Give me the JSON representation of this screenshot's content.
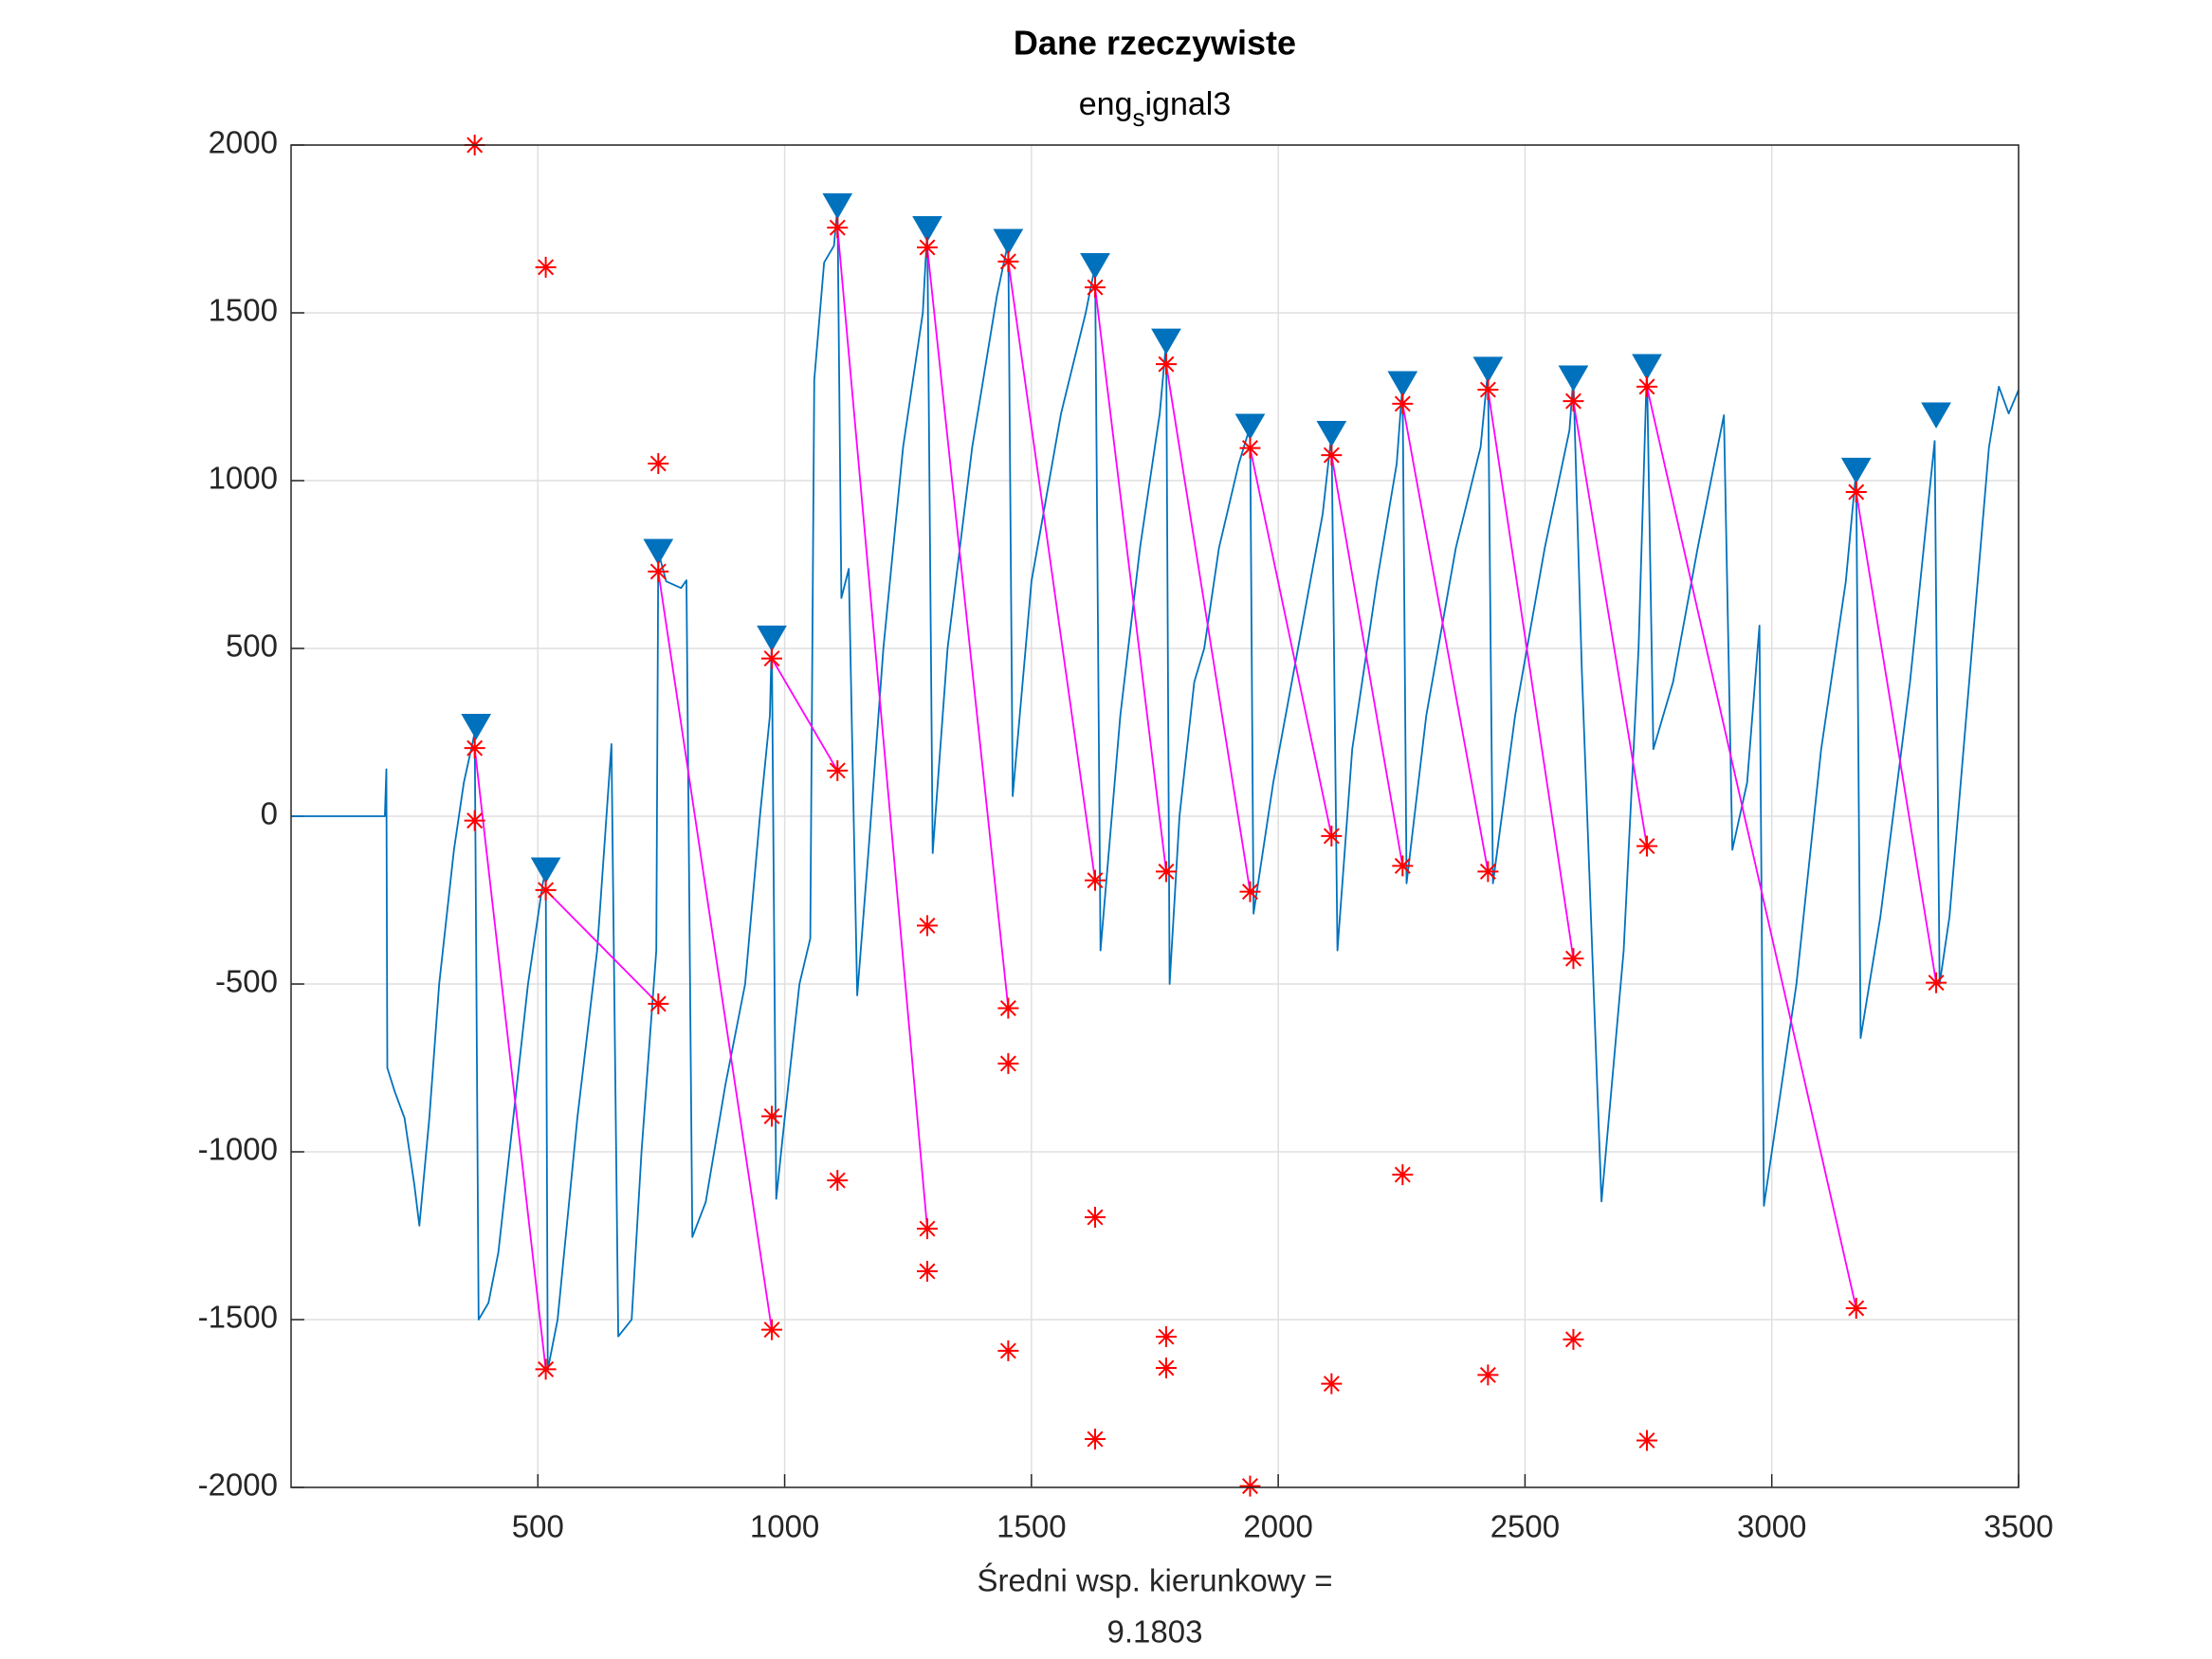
{
  "chart_data": {
    "type": "line",
    "title": "Dane rzeczywiste",
    "subtitle": [
      "eng",
      "s",
      "ignal3"
    ],
    "xlabel": [
      "Średni wsp. kierunkowy =",
      "9.1803"
    ],
    "xlim": [
      0,
      3500
    ],
    "xticks": [
      500,
      1000,
      1500,
      2000,
      2500,
      3000,
      3500
    ],
    "ylim": [
      -2000,
      2000
    ],
    "yticks": [
      -2000,
      -1500,
      -1000,
      -500,
      0,
      500,
      1000,
      1500,
      2000
    ],
    "grid": true,
    "series": [
      {
        "color": "#0072bd",
        "marker": "none",
        "x": [
          0,
          190,
          193,
          195,
          210,
          230,
          240,
          250,
          260,
          280,
          300,
          330,
          350,
          365,
          372,
          380,
          400,
          420,
          450,
          480,
          510,
          516,
          520,
          540,
          560,
          580,
          620,
          649,
          663,
          690,
          710,
          740,
          744,
          760,
          790,
          801,
          813,
          840,
          880,
          920,
          950,
          970,
          974,
          983,
          1000,
          1030,
          1052,
          1060,
          1080,
          1100,
          1107,
          1115,
          1130,
          1147,
          1170,
          1200,
          1240,
          1280,
          1289,
          1300,
          1330,
          1380,
          1430,
          1453,
          1462,
          1500,
          1560,
          1610,
          1629,
          1640,
          1680,
          1720,
          1760,
          1773,
          1780,
          1800,
          1830,
          1850,
          1880,
          1920,
          1943,
          1950,
          1990,
          2040,
          2090,
          2108,
          2120,
          2150,
          2200,
          2240,
          2252,
          2260,
          2300,
          2360,
          2410,
          2425,
          2435,
          2480,
          2540,
          2590,
          2598,
          2615,
          2655,
          2700,
          2730,
          2747,
          2760,
          2800,
          2850,
          2903,
          2920,
          2950,
          2975,
          2984,
          3050,
          3100,
          3150,
          3171,
          3180,
          3220,
          3280,
          3330,
          3340,
          3360,
          3400,
          3440,
          3460,
          3480,
          3500
        ],
        "values": [
          0,
          0,
          140,
          -750,
          -820,
          -900,
          -1000,
          -1100,
          -1220,
          -900,
          -500,
          -100,
          100,
          200,
          250,
          -1500,
          -1450,
          -1300,
          -900,
          -500,
          -200,
          -161,
          -1650,
          -1500,
          -1200,
          -900,
          -400,
          215,
          -1550,
          -1500,
          -1000,
          -400,
          788,
          700,
          680,
          703,
          -1254,
          -1150,
          -800,
          -500,
          0,
          300,
          530,
          -1140,
          -900,
          -500,
          -364,
          1300,
          1650,
          1700,
          1818,
          650,
          737,
          -534,
          -100,
          500,
          1100,
          1500,
          1750,
          -110,
          500,
          1100,
          1550,
          1712,
          60,
          700,
          1200,
          1500,
          1640,
          -400,
          300,
          800,
          1200,
          1415,
          -500,
          0,
          400,
          500,
          800,
          1050,
          1161,
          -290,
          100,
          500,
          900,
          1140,
          -400,
          200,
          700,
          1050,
          1288,
          -200,
          300,
          800,
          1100,
          1331,
          -200,
          300,
          800,
          1150,
          1305,
          440,
          -1148,
          -400,
          500,
          1339,
          200,
          400,
          800,
          1195,
          -100,
          100,
          568,
          -1161,
          -500,
          200,
          700,
          1030,
          -661,
          -300,
          400,
          1118,
          -500,
          -300,
          400,
          1100,
          1280,
          1200,
          1270
        ]
      },
      {
        "color": "#ff00ff",
        "marker": "none",
        "x": [
          372,
          516,
          null,
          516,
          744,
          null,
          744,
          974,
          null,
          974,
          1107,
          null,
          1107,
          1289,
          null,
          1289,
          1453,
          null,
          1453,
          1629,
          null,
          1629,
          1773,
          null,
          1773,
          1943,
          null,
          1943,
          2108,
          null,
          2108,
          2252,
          null,
          2252,
          2425,
          null,
          2425,
          2598,
          null,
          2598,
          2747,
          null,
          2747,
          3171,
          null,
          3171,
          3333
        ],
        "values": [
          203,
          -1648,
          null,
          -220,
          -559,
          null,
          729,
          -1530,
          null,
          470,
          136,
          null,
          1754,
          -1229,
          null,
          1695,
          -572,
          null,
          1653,
          -191,
          null,
          1576,
          -165,
          null,
          1347,
          -225,
          null,
          1097,
          -59,
          null,
          1076,
          -148,
          null,
          1229,
          -165,
          null,
          1271,
          -424,
          null,
          1237,
          -89,
          null,
          1280,
          -1466,
          null,
          966,
          -496
        ]
      },
      {
        "color": "#0072bd",
        "marker": "triangle-down",
        "x": [
          375,
          516,
          744,
          974,
          1107,
          1289,
          1453,
          1629,
          1773,
          1943,
          2108,
          2252,
          2425,
          2598,
          2747,
          3171,
          3333
        ],
        "values": [
          267,
          -161,
          788,
          530,
          1818,
          1750,
          1712,
          1640,
          1415,
          1161,
          1140,
          1288,
          1331,
          1305,
          1339,
          1030,
          1195
        ]
      },
      {
        "color": "#ff0000",
        "marker": "asterisk",
        "x": [
          372,
          516,
          372,
          372,
          516,
          516,
          744,
          744,
          744,
          974,
          974,
          974,
          1107,
          1107,
          1107,
          1289,
          1289,
          1289,
          1289,
          1453,
          1453,
          1453,
          1453,
          1629,
          1629,
          1629,
          1629,
          1773,
          1773,
          1773,
          1773,
          1943,
          1943,
          1943,
          2108,
          2108,
          2108,
          2252,
          2252,
          2252,
          2425,
          2425,
          2425,
          2598,
          2598,
          2598,
          2747,
          2747,
          2747,
          3171,
          3171,
          3333
        ],
        "values": [
          2000,
          1636,
          203,
          -13,
          -220,
          -1648,
          1051,
          729,
          -559,
          470,
          -894,
          -1530,
          1754,
          136,
          -1085,
          1695,
          -326,
          -1229,
          -1356,
          1653,
          -572,
          -737,
          -1593,
          1576,
          -191,
          -1195,
          -1856,
          1347,
          -165,
          -1551,
          -1644,
          1097,
          -225,
          -1996,
          1076,
          -59,
          -1691,
          1229,
          -148,
          -1068,
          1271,
          -165,
          -1665,
          1237,
          -424,
          -1559,
          1280,
          -89,
          -1860,
          966,
          -1466,
          -496
        ]
      }
    ]
  }
}
